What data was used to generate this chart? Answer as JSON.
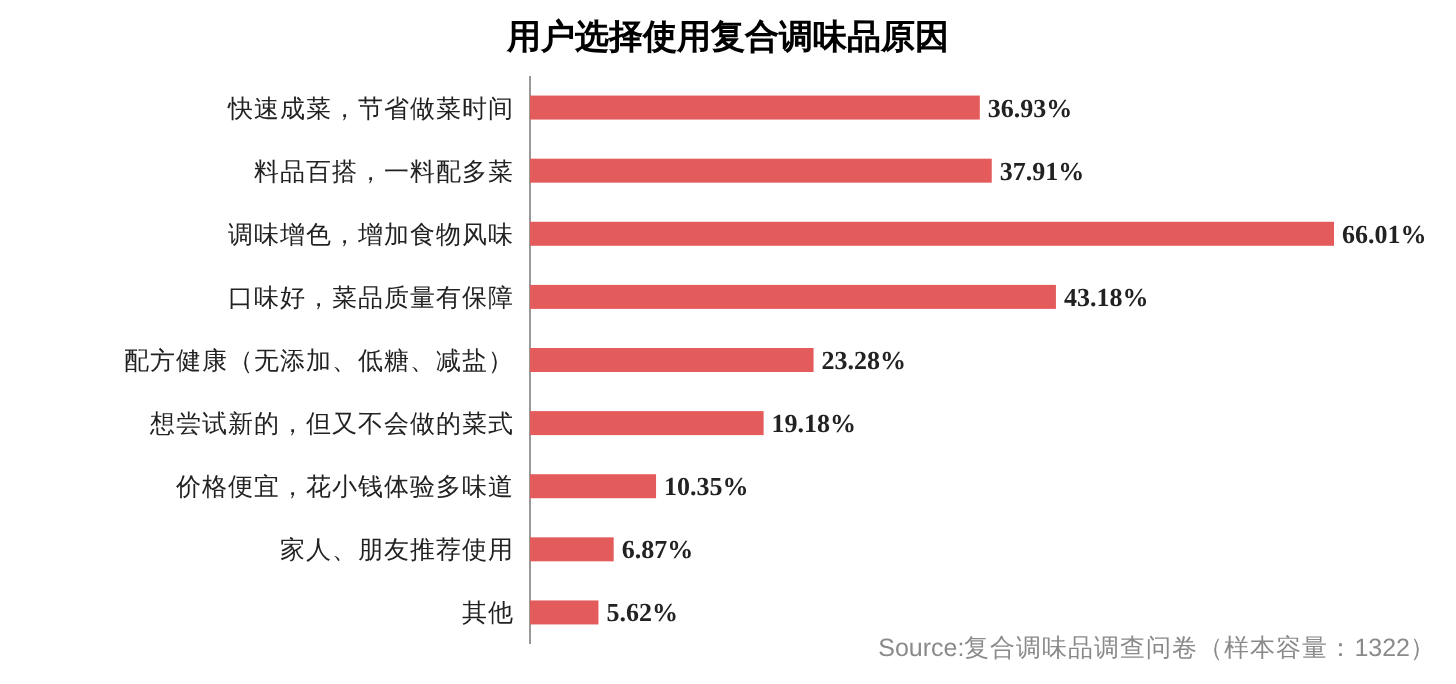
{
  "chart_data": {
    "type": "bar",
    "orientation": "horizontal",
    "title": "用户选择使用复合调味品原因",
    "categories": [
      "快速成菜，节省做菜时间",
      "料品百搭，一料配多菜",
      "调味增色，增加食物风味",
      "口味好，菜品质量有保障",
      "配方健康（无添加、低糖、减盐）",
      "想尝试新的，但又不会做的菜式",
      "价格便宜，花小钱体验多味道",
      "家人、朋友推荐使用",
      "其他"
    ],
    "values": [
      36.93,
      37.91,
      66.01,
      43.18,
      23.28,
      19.18,
      10.35,
      6.87,
      5.62
    ],
    "value_labels": [
      "36.93%",
      "37.91%",
      "66.01%",
      "43.18%",
      "23.28%",
      "19.18%",
      "10.35%",
      "6.87%",
      "5.62%"
    ],
    "color": "#e35b5b",
    "annotations": [
      "Source:复合调味品调查问卷（样本容量：1322）"
    ]
  }
}
